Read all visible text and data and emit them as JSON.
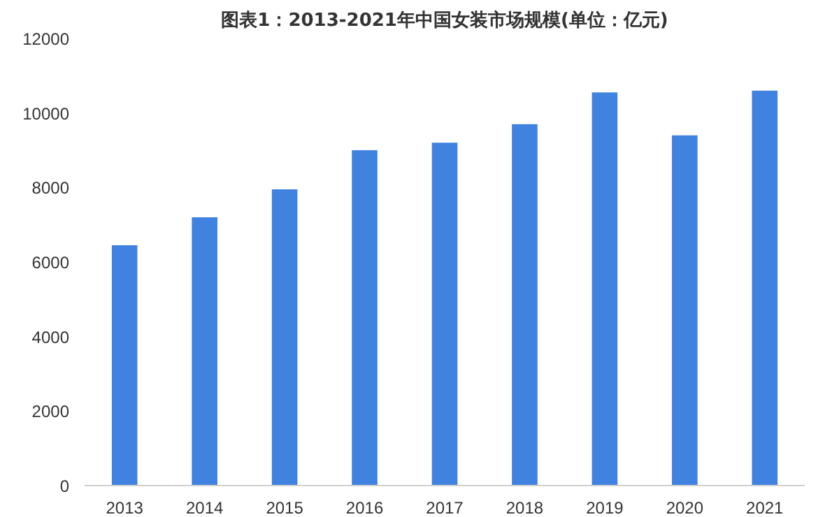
{
  "chart_data": {
    "type": "bar",
    "title": "图表1：2013-2021年中国女装市场规模(单位：亿元)",
    "categories": [
      "2013",
      "2014",
      "2015",
      "2016",
      "2017",
      "2018",
      "2019",
      "2020",
      "2021"
    ],
    "values": [
      6450,
      7200,
      7950,
      9000,
      9200,
      9700,
      10550,
      9400,
      10600
    ],
    "color": "#3f82e0",
    "ylim": [
      0,
      12000
    ],
    "yticks": [
      0,
      2000,
      4000,
      6000,
      8000,
      10000,
      12000
    ],
    "grid": false
  }
}
